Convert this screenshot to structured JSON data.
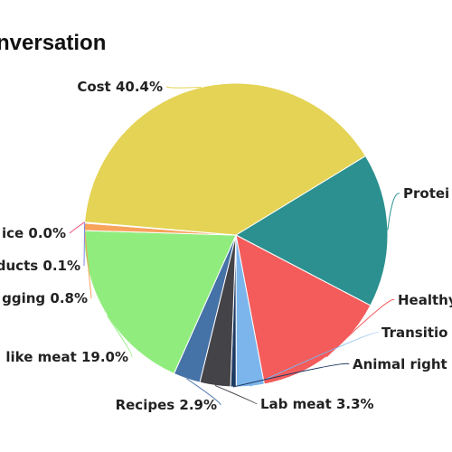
{
  "chart_data": {
    "type": "pie",
    "title": "nversation",
    "start_category": "Proteins",
    "slices": [
      {
        "label": "Proteins",
        "value": 16.6,
        "display": "Protei",
        "value_text": "",
        "color": "#2b908f"
      },
      {
        "label": "Healthy",
        "value": 14.5,
        "display": "Healthy",
        "value_text": "",
        "color": "#f45b5b"
      },
      {
        "label": "Transition",
        "value": 3.0,
        "display": "Transitio",
        "value_text": "",
        "color": "#7cb5ec"
      },
      {
        "label": "Animal rights",
        "value": 0.6,
        "display": "Animal right",
        "value_text": "",
        "color": "#1f3b63"
      },
      {
        "label": "Lab meat",
        "value": 3.3,
        "display": "Lab meat",
        "value_text": "3.3%",
        "color": "#434348"
      },
      {
        "label": "Recipes",
        "value": 2.9,
        "display": "Recipes",
        "value_text": "2.9%",
        "color": "#4572a7"
      },
      {
        "label": "like meat",
        "value": 19.0,
        "display": "like meat",
        "value_text": "19.0%",
        "color": "#90ed7d"
      },
      {
        "label": "gging",
        "value": 0.8,
        "display": "gging",
        "value_text": "0.8%",
        "color": "#f7a35c"
      },
      {
        "label": "ducts",
        "value": 0.1,
        "display": "ducts",
        "value_text": "0.1%",
        "color": "#8085e9"
      },
      {
        "label": "ice",
        "value": 0.0,
        "display": "ice",
        "value_text": "0.0%",
        "color": "#f15c80"
      },
      {
        "label": "Cost",
        "value": 40.4,
        "display": "Cost",
        "value_text": "40.4%",
        "color": "#e4d354"
      }
    ]
  }
}
